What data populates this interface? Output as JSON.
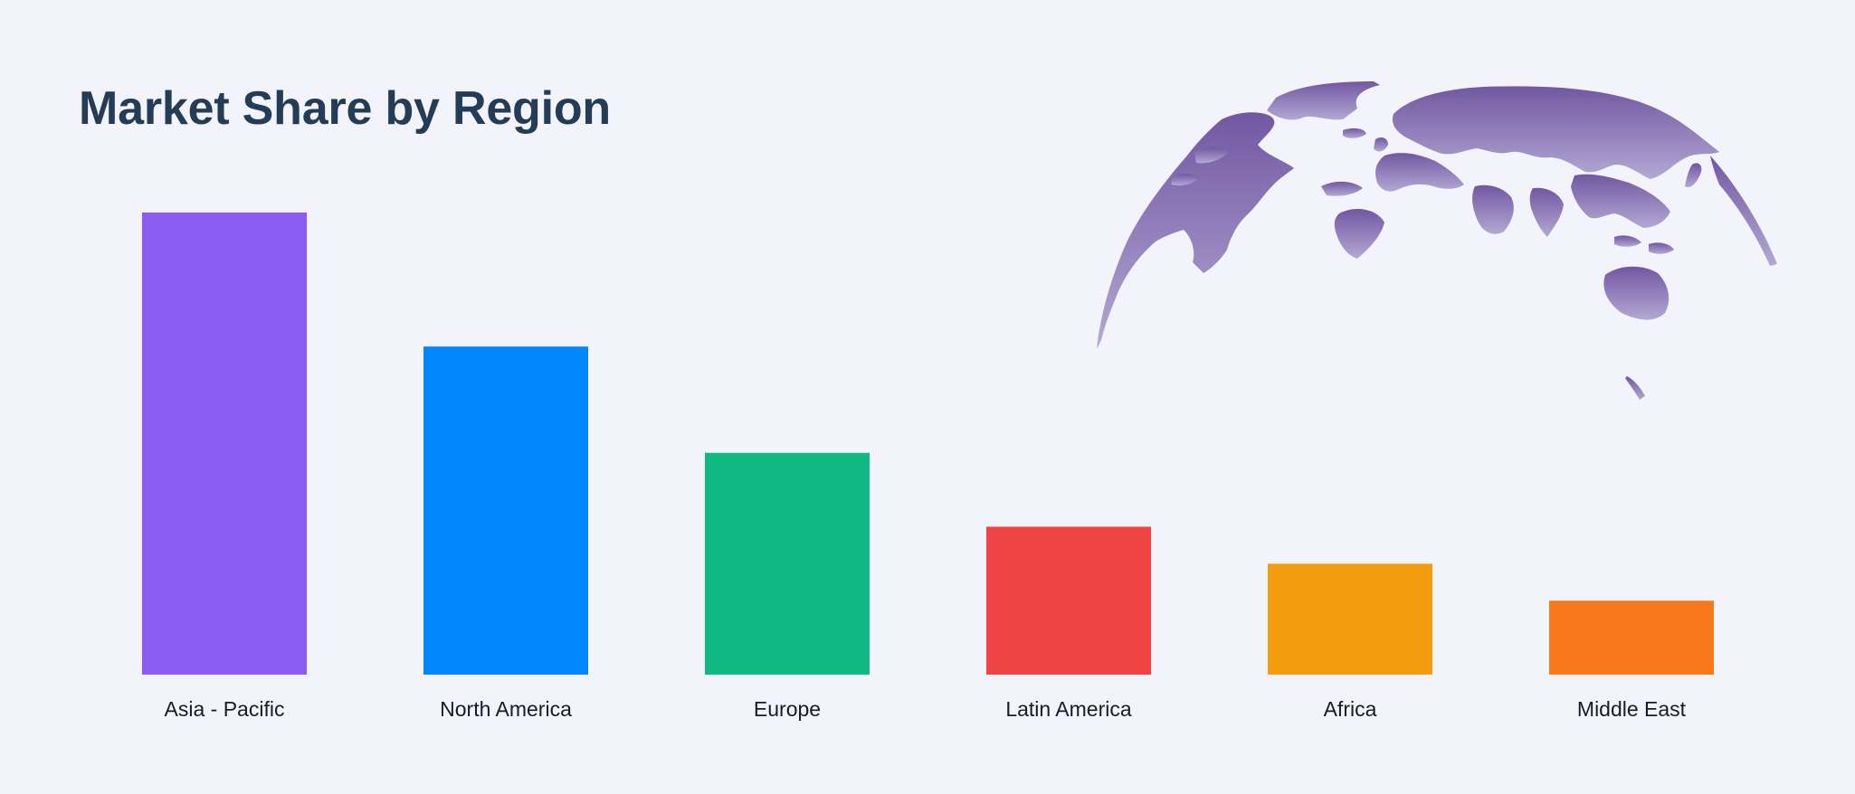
{
  "title": "Market Share by Region",
  "decoration": {
    "icon": "world-globe-icon",
    "color": "#7a5fa8"
  },
  "chart_data": {
    "type": "bar",
    "title": "Market Share by Region",
    "xlabel": "",
    "ylabel": "",
    "grid": false,
    "legend": "none",
    "categories": [
      "Asia - Pacific",
      "North America",
      "Europe",
      "Latin America",
      "Africa",
      "Middle East"
    ],
    "values": [
      100,
      71,
      48,
      32,
      24,
      16
    ],
    "colors": [
      "#8b5cf2",
      "#0286fb",
      "#10b981",
      "#ef4444",
      "#f39c0e",
      "#f8781a"
    ],
    "ylim": [
      0,
      100
    ]
  }
}
